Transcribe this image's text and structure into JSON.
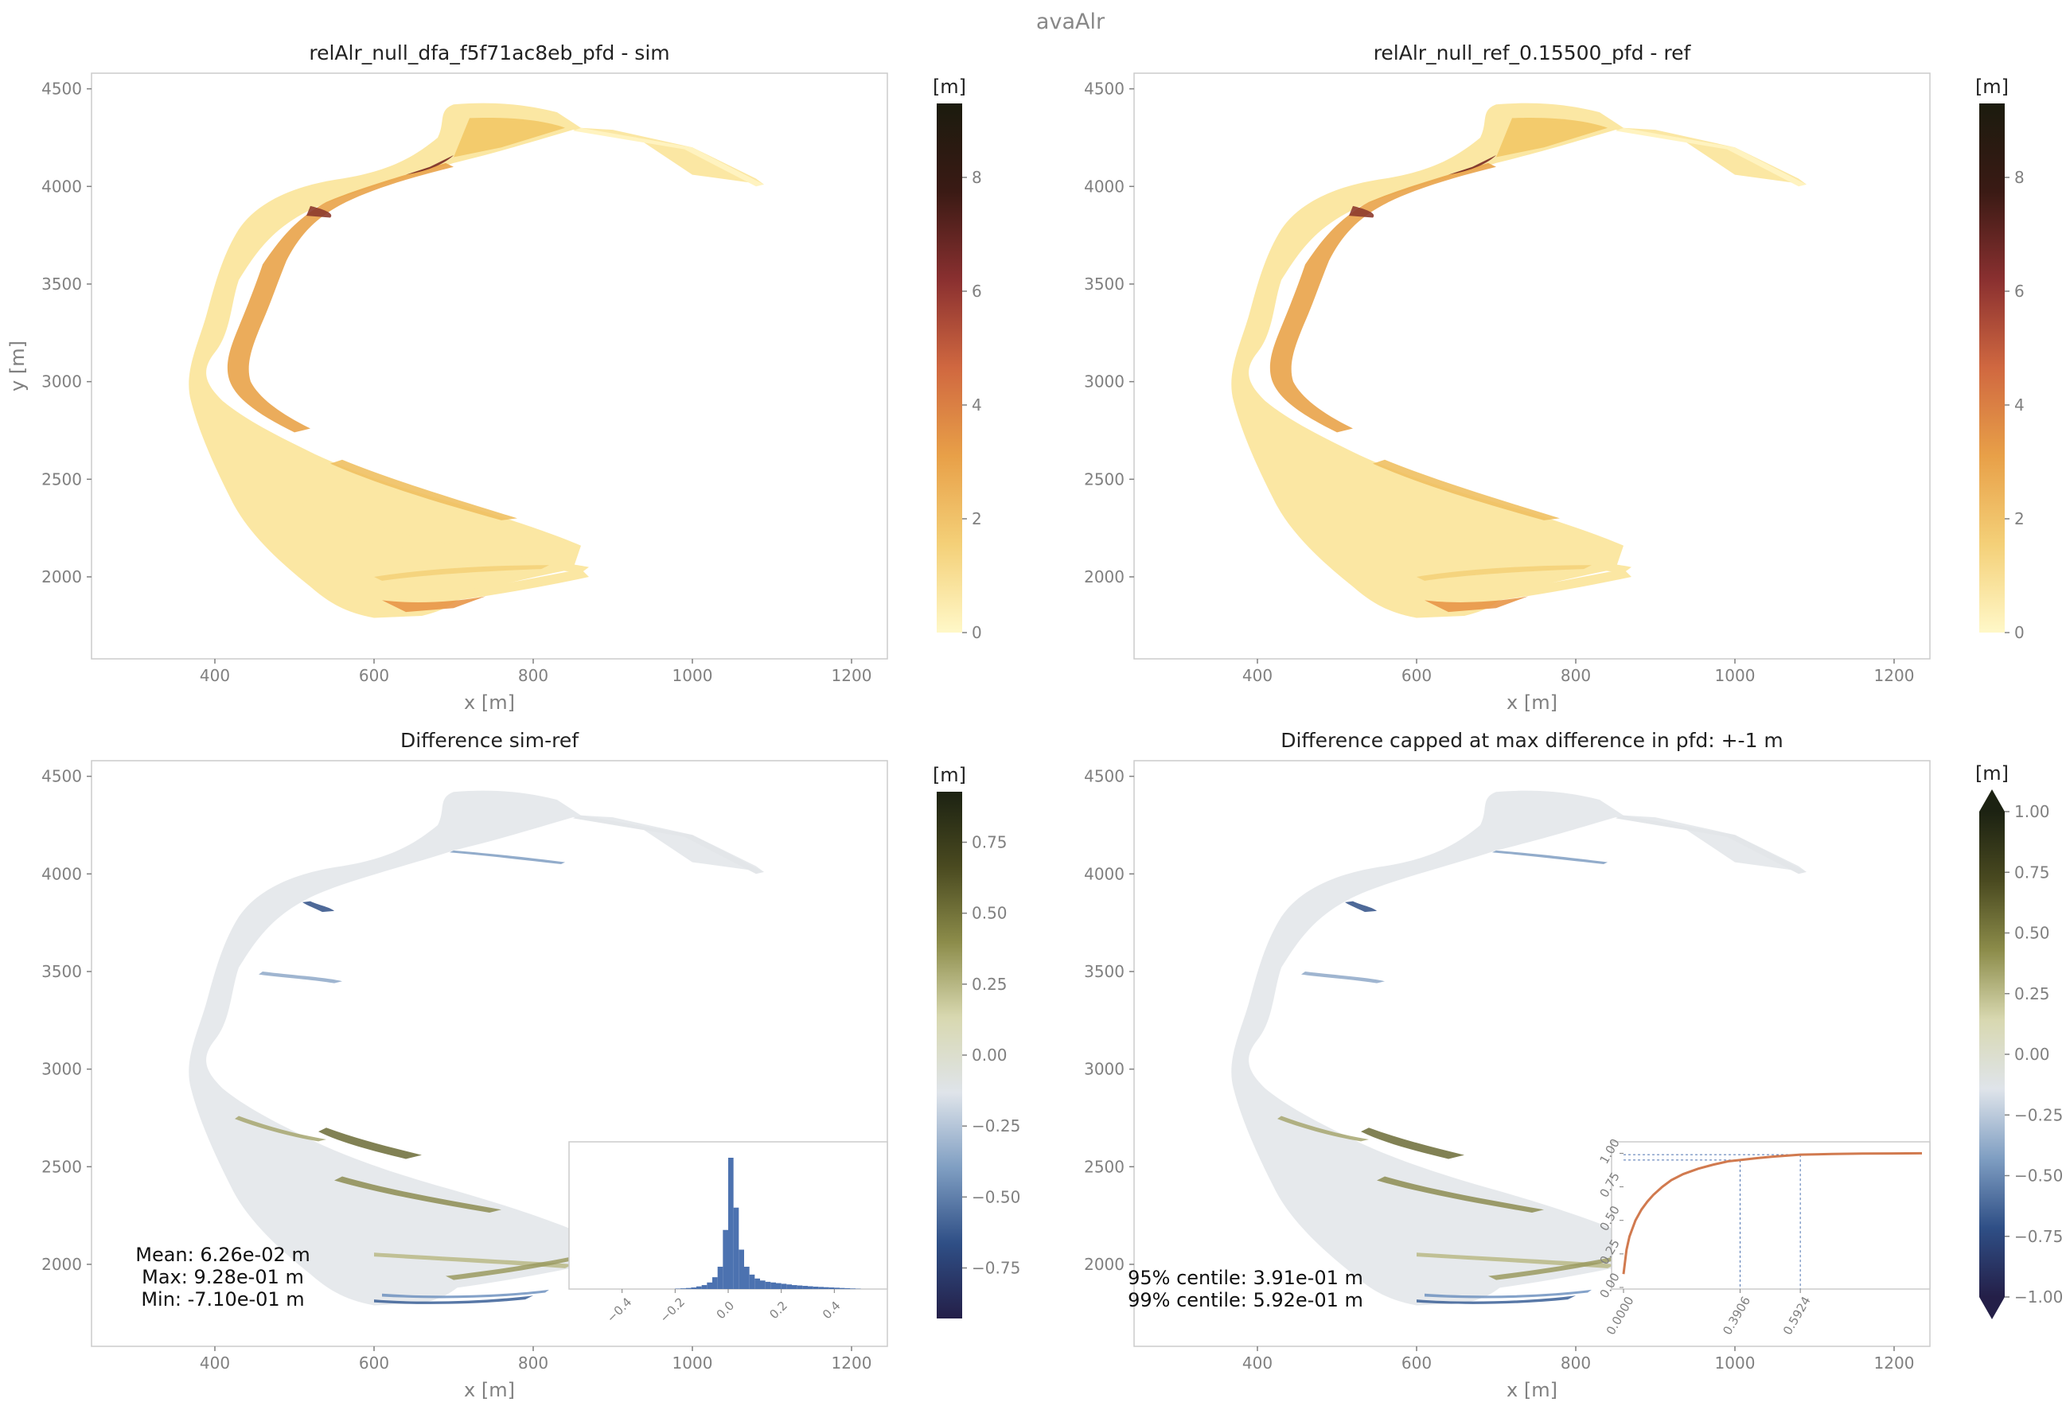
{
  "figure": {
    "suptitle": "avaAlr",
    "xlabel": "x [m]",
    "ylabel": "y [m]",
    "colorbar_unit": "[m]"
  },
  "chart_data": [
    {
      "type": "heatmap",
      "title": "relAlr_null_dfa_f5f71ac8eb_pfd - sim",
      "xlabel": "x [m]",
      "ylabel": "y [m]",
      "xlim": [
        245,
        1245
      ],
      "ylim": [
        1580,
        4580
      ],
      "xticks": [
        400,
        600,
        800,
        1000,
        1200
      ],
      "yticks": [
        2000,
        2500,
        3000,
        3500,
        4000,
        4500
      ],
      "colorbar": {
        "label": "[m]",
        "range": [
          0,
          9.3
        ],
        "ticks": [
          0,
          2,
          4,
          6,
          8
        ],
        "colormap": [
          "#fff8c8",
          "#f4d078",
          "#e8a048",
          "#d06840",
          "#8a3030",
          "#3a1a14",
          "#1b1b0e"
        ]
      }
    },
    {
      "type": "heatmap",
      "title": "relAlr_null_ref_0.15500_pfd - ref",
      "xlabel": "x [m]",
      "xlim": [
        245,
        1245
      ],
      "ylim": [
        1580,
        4580
      ],
      "xticks": [
        400,
        600,
        800,
        1000,
        1200
      ],
      "yticks": [
        2000,
        2500,
        3000,
        3500,
        4000,
        4500
      ],
      "colorbar": {
        "label": "[m]",
        "range": [
          0,
          9.3
        ],
        "ticks": [
          0,
          2,
          4,
          6,
          8
        ],
        "colormap": [
          "#fff8c8",
          "#f4d078",
          "#e8a048",
          "#d06840",
          "#8a3030",
          "#3a1a14",
          "#1b1b0e"
        ]
      }
    },
    {
      "type": "heatmap",
      "title": "Difference sim-ref",
      "xlabel": "x [m]",
      "xlim": [
        245,
        1245
      ],
      "ylim": [
        1580,
        4580
      ],
      "xticks": [
        400,
        600,
        800,
        1000,
        1200
      ],
      "yticks": [
        2000,
        2500,
        3000,
        3500,
        4000,
        4500
      ],
      "colorbar": {
        "label": "[m]",
        "range": [
          -0.928,
          0.928
        ],
        "ticks": [
          -0.75,
          -0.5,
          -0.25,
          0.0,
          0.25,
          0.5,
          0.75
        ],
        "tick_labels": [
          "−0.75",
          "−0.50",
          "−0.25",
          "0.00",
          "0.25",
          "0.50",
          "0.75"
        ],
        "colormap": [
          "#241f48",
          "#2f4f86",
          "#7f9ec2",
          "#dfe4ea",
          "#d8d8b0",
          "#8c8c4a",
          "#4a4a20",
          "#1c2212"
        ]
      },
      "annotations": [
        "Mean: 6.26e-02 m",
        "Max: 9.28e-01 m",
        "Min: -7.10e-01 m"
      ],
      "inset": {
        "type": "bar",
        "description": "histogram",
        "xlim": [
          -0.6,
          0.6
        ],
        "xticks": [
          -0.4,
          -0.2,
          0.0,
          0.2,
          0.4
        ],
        "xtick_labels": [
          "−0.4",
          "−0.2",
          "0.0",
          "0.2",
          "0.4"
        ],
        "bin_centers": [
          -0.19,
          -0.17,
          -0.15,
          -0.13,
          -0.11,
          -0.09,
          -0.07,
          -0.05,
          -0.03,
          -0.01,
          0.01,
          0.03,
          0.05,
          0.07,
          0.09,
          0.11,
          0.13,
          0.15,
          0.17,
          0.19,
          0.21,
          0.23,
          0.25,
          0.27,
          0.29,
          0.31,
          0.33,
          0.35,
          0.37,
          0.39,
          0.41,
          0.43,
          0.45,
          0.47,
          0.49
        ],
        "counts": [
          0.003,
          0.005,
          0.008,
          0.012,
          0.02,
          0.03,
          0.05,
          0.09,
          0.17,
          0.45,
          1.0,
          0.62,
          0.3,
          0.17,
          0.11,
          0.08,
          0.065,
          0.055,
          0.05,
          0.045,
          0.04,
          0.035,
          0.03,
          0.027,
          0.024,
          0.021,
          0.018,
          0.016,
          0.014,
          0.012,
          0.01,
          0.008,
          0.006,
          0.004,
          0.002
        ],
        "color": "#4c72b0"
      }
    },
    {
      "type": "heatmap",
      "title": "Difference capped at max difference in pfd: +-1 m",
      "xlabel": "x [m]",
      "xlim": [
        245,
        1245
      ],
      "ylim": [
        1580,
        4580
      ],
      "xticks": [
        400,
        600,
        800,
        1000,
        1200
      ],
      "yticks": [
        2000,
        2500,
        3000,
        3500,
        4000,
        4500
      ],
      "colorbar": {
        "label": "[m]",
        "range": [
          -1.0,
          1.0
        ],
        "extend": "both",
        "ticks": [
          -1.0,
          -0.75,
          -0.5,
          -0.25,
          0.0,
          0.25,
          0.5,
          0.75,
          1.0
        ],
        "tick_labels": [
          "−1.00",
          "−0.75",
          "−0.50",
          "−0.25",
          "0.00",
          "0.25",
          "0.50",
          "0.75",
          "1.00"
        ],
        "colormap": [
          "#241f48",
          "#2f4f86",
          "#7f9ec2",
          "#dfe4ea",
          "#d8d8b0",
          "#8c8c4a",
          "#4a4a20",
          "#1c2212"
        ]
      },
      "annotations": [
        "95% centile: 3.91e-01 m",
        "99% centile: 5.92e-01 m"
      ],
      "inset": {
        "type": "line",
        "description": "cumulative distribution",
        "xlim": [
          0,
          1.0
        ],
        "ylim": [
          0,
          1.05
        ],
        "xticks": [
          0.0,
          0.3906,
          0.5924
        ],
        "xtick_labels": [
          "0.0000",
          "0.3906",
          "0.5924"
        ],
        "yticks": [
          0.0,
          0.25,
          0.5,
          0.75,
          1.0
        ],
        "ytick_labels": [
          "0.00",
          "0.25",
          "0.50",
          "0.75",
          "1.00"
        ],
        "x": [
          0.0,
          0.01,
          0.02,
          0.04,
          0.06,
          0.08,
          0.1,
          0.13,
          0.16,
          0.2,
          0.25,
          0.3,
          0.35,
          0.3906,
          0.45,
          0.5,
          0.5924,
          0.7,
          0.8,
          0.9,
          1.0
        ],
        "y": [
          0.1,
          0.28,
          0.38,
          0.5,
          0.58,
          0.64,
          0.69,
          0.75,
          0.8,
          0.845,
          0.885,
          0.915,
          0.94,
          0.95,
          0.965,
          0.975,
          0.99,
          0.995,
          0.998,
          0.999,
          1.0
        ],
        "markers": [
          {
            "x": 0.3906,
            "y": 0.95
          },
          {
            "x": 0.5924,
            "y": 0.99
          }
        ],
        "color": "#d17a4f"
      }
    }
  ]
}
